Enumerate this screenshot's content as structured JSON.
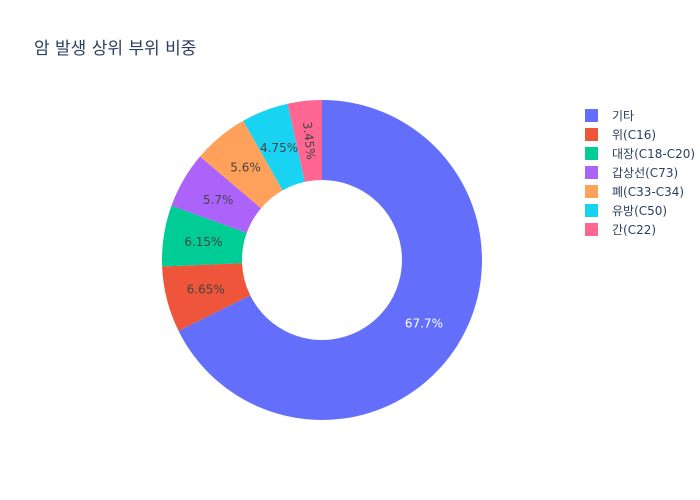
{
  "chart_data": {
    "type": "pie",
    "title": "암 발생 상위 부위 비중",
    "hole": 0.5,
    "categories": [
      "기타",
      "위(C16)",
      "대장(C18-C20)",
      "갑상선(C73)",
      "폐(C33-C34)",
      "유방(C50)",
      "간(C22)"
    ],
    "values": [
      67.7,
      6.65,
      6.15,
      5.7,
      5.6,
      4.75,
      3.45
    ],
    "labels": [
      "67.7%",
      "6.65%",
      "6.15%",
      "5.7%",
      "5.6%",
      "4.75%",
      "3.45%"
    ],
    "colors": [
      "#636efa",
      "#EF553B",
      "#00cc96",
      "#ab63fa",
      "#FFA15A",
      "#19d3f3",
      "#FF6692"
    ],
    "label_colors": [
      "#ffffff",
      "#444444",
      "#444444",
      "#444444",
      "#444444",
      "#444444",
      "#444444"
    ],
    "direction": "clockwise",
    "start_angle_deg": 0,
    "legend_position": "right"
  }
}
